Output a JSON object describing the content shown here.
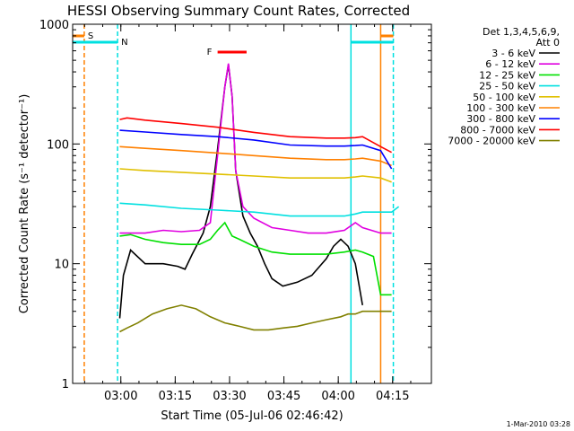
{
  "chart_data": {
    "type": "line",
    "title": "HESSI Observing Summary Count Rates, Corrected",
    "xlabel": "Start Time (05-Jul-06 02:46:42)",
    "ylabel": "Corrected Count Rate (s⁻¹ detector⁻¹)",
    "yscale": "log",
    "ylim": [
      1,
      1000
    ],
    "xlim_minutes": [
      0,
      99
    ],
    "x_ticks": [
      {
        "label": "03:00",
        "minute": 13.3
      },
      {
        "label": "03:15",
        "minute": 28.3
      },
      {
        "label": "03:30",
        "minute": 43.3
      },
      {
        "label": "03:45",
        "minute": 58.3
      },
      {
        "label": "04:00",
        "minute": 73.3
      },
      {
        "label": "04:15",
        "minute": 88.3
      }
    ],
    "y_ticks": [
      {
        "label": "1",
        "value": 1
      },
      {
        "label": "10",
        "value": 10
      },
      {
        "label": "100",
        "value": 100
      },
      {
        "label": "1000",
        "value": 1000
      }
    ],
    "legend": {
      "placement": "right",
      "header_line1": "Det 1,3,4,5,6,9,",
      "header_line2": "Att 0"
    },
    "series": [
      {
        "name": "3 - 6 keV",
        "color": "#000000",
        "x": [
          13,
          14,
          16,
          20,
          25,
          29,
          31,
          33,
          36,
          38,
          40,
          42,
          43,
          44,
          45,
          47,
          49,
          51,
          53,
          55,
          58,
          62,
          66,
          70,
          72,
          74,
          76,
          78,
          80
        ],
        "values": [
          3.5,
          8,
          13,
          10,
          10,
          9.5,
          9,
          12,
          18,
          30,
          90,
          300,
          460,
          250,
          60,
          25,
          18,
          14,
          10,
          7.5,
          6.5,
          7,
          8,
          11,
          14,
          16,
          14,
          10,
          4.5
        ]
      },
      {
        "name": "6 - 12 keV",
        "color": "#e000e0",
        "x": [
          13,
          16,
          20,
          25,
          30,
          35,
          38,
          40,
          42,
          43,
          44,
          45,
          47,
          50,
          55,
          60,
          65,
          70,
          75,
          78,
          80,
          85,
          88
        ],
        "values": [
          18,
          18,
          18,
          19,
          18.5,
          19,
          22,
          80,
          300,
          470,
          250,
          60,
          30,
          24,
          20,
          19,
          18,
          18,
          19,
          22,
          20,
          18,
          18
        ]
      },
      {
        "name": "12 - 25 keV",
        "color": "#00e000",
        "x": [
          13,
          16,
          20,
          25,
          30,
          35,
          38,
          40,
          42,
          44,
          46,
          50,
          55,
          60,
          65,
          70,
          75,
          78,
          80,
          83,
          85,
          88
        ],
        "values": [
          17,
          17.5,
          16,
          15,
          14.5,
          14.5,
          16,
          19,
          22,
          17,
          16,
          14,
          12.5,
          12,
          12,
          12,
          12.5,
          13,
          12.5,
          11.5,
          5.5,
          5.5
        ]
      },
      {
        "name": "25 - 50 keV",
        "color": "#00e0e0",
        "x": [
          13,
          20,
          30,
          40,
          50,
          60,
          70,
          75,
          78,
          80,
          85,
          88,
          90
        ],
        "values": [
          32,
          31,
          29,
          28,
          27,
          25,
          25,
          25,
          26,
          27,
          27,
          27,
          30
        ]
      },
      {
        "name": "50 - 100 keV",
        "color": "#e0c000",
        "x": [
          13,
          20,
          30,
          40,
          50,
          60,
          70,
          75,
          78,
          80,
          85,
          88
        ],
        "values": [
          62,
          60,
          58,
          56,
          54,
          52,
          52,
          52,
          53,
          54,
          52,
          48
        ]
      },
      {
        "name": "100 - 300 keV",
        "color": "#ff8000",
        "x": [
          13,
          20,
          30,
          40,
          50,
          60,
          70,
          75,
          78,
          80,
          85,
          88
        ],
        "values": [
          95,
          92,
          88,
          84,
          80,
          76,
          74,
          74,
          75,
          76,
          72,
          66
        ]
      },
      {
        "name": "300 - 800 keV",
        "color": "#0000ff",
        "x": [
          13,
          20,
          30,
          40,
          50,
          60,
          70,
          75,
          78,
          80,
          85,
          88
        ],
        "values": [
          130,
          126,
          120,
          115,
          108,
          98,
          96,
          96,
          97,
          98,
          88,
          62
        ]
      },
      {
        "name": "800 - 7000 keV",
        "color": "#ff0000",
        "x": [
          13,
          15,
          20,
          30,
          40,
          50,
          60,
          70,
          75,
          78,
          80,
          85,
          88
        ],
        "values": [
          160,
          165,
          158,
          148,
          138,
          125,
          115,
          112,
          112,
          113,
          115,
          95,
          85
        ]
      },
      {
        "name": "7000 - 20000 keV",
        "color": "#808000",
        "x": [
          13,
          15,
          18,
          22,
          26,
          30,
          34,
          38,
          42,
          46,
          50,
          54,
          58,
          62,
          66,
          70,
          74,
          76,
          78,
          80,
          84,
          88
        ],
        "values": [
          2.7,
          2.9,
          3.2,
          3.8,
          4.2,
          4.5,
          4.2,
          3.6,
          3.2,
          3.0,
          2.8,
          2.8,
          2.9,
          3.0,
          3.2,
          3.4,
          3.6,
          3.8,
          3.8,
          4.0,
          4.0,
          4.0
        ]
      }
    ],
    "flag_bars": [
      {
        "label": "S",
        "color": "#ff8000",
        "segments": [
          [
            -6,
            3.2
          ],
          [
            85,
            88.5
          ]
        ]
      },
      {
        "label": "N",
        "color": "#00e0e0",
        "segments": [
          [
            -6,
            12.4
          ],
          [
            76.8,
            88.5
          ]
        ]
      },
      {
        "label": "F",
        "color": "#ff0000",
        "segments": [
          [
            40,
            48
          ]
        ]
      }
    ],
    "vertical_markers": [
      {
        "minute": 3.2,
        "color": "#ff8000",
        "style": "dashed"
      },
      {
        "minute": 12.4,
        "color": "#00e0e0",
        "style": "dashed"
      },
      {
        "minute": 76.8,
        "color": "#00e0e0",
        "style": "solid"
      },
      {
        "minute": 85,
        "color": "#ff8000",
        "style": "solid"
      },
      {
        "minute": 88.5,
        "color": "#00e0e0",
        "style": "dashed"
      }
    ],
    "footer_text": "1-Mar-2010 03:28"
  }
}
